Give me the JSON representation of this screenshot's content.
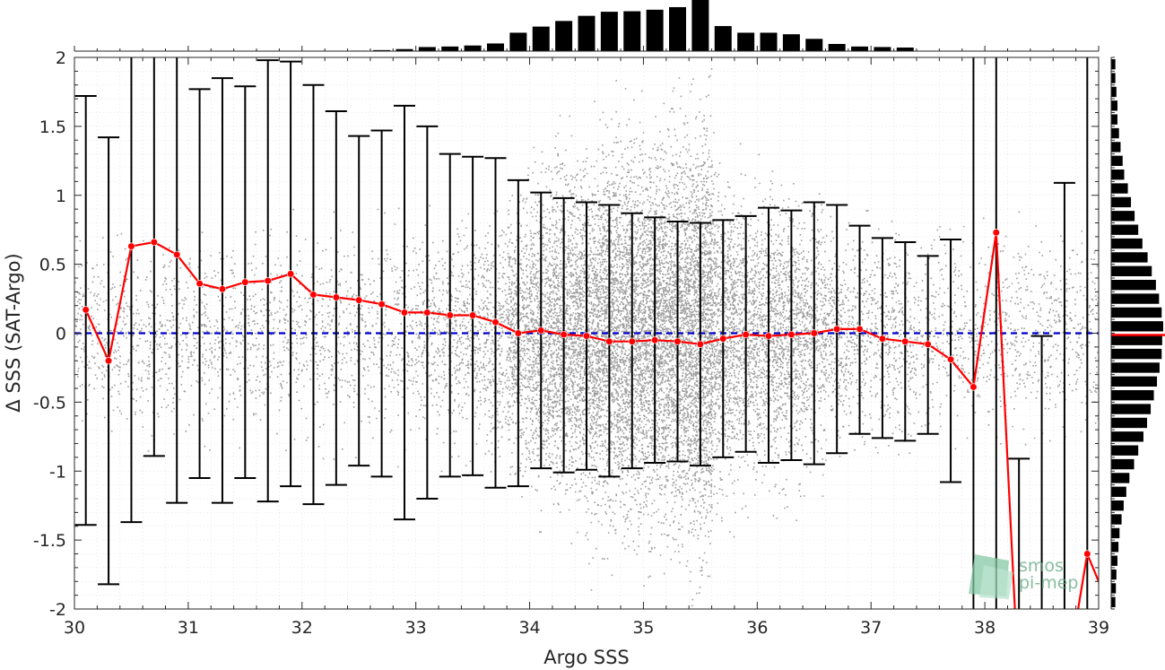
{
  "chart_data": {
    "type": "scatter",
    "xlabel": "Argo SSS",
    "ylabel": "Δ SSS (SAT-Argo)",
    "xlim": [
      30,
      39
    ],
    "ylim": [
      -2,
      2
    ],
    "x_ticks": [
      "30",
      "31",
      "32",
      "33",
      "34",
      "35",
      "36",
      "37",
      "38",
      "39"
    ],
    "y_ticks": [
      "2",
      "1.5",
      "1",
      "0.5",
      "0",
      "-0.5",
      "-1",
      "-1.5",
      "-2"
    ],
    "grid": "minor dotted",
    "zero_line": {
      "y": 0,
      "style": "dashed",
      "color": "#0000cc"
    },
    "scatter_color": "#8c8c8c",
    "series": [
      {
        "type": "line-with-markers",
        "color": "#ff0000",
        "x": [
          30.1,
          30.3,
          30.5,
          30.7,
          30.9,
          31.1,
          31.3,
          31.5,
          31.7,
          31.9,
          32.1,
          32.3,
          32.5,
          32.7,
          32.9,
          33.1,
          33.3,
          33.5,
          33.7,
          33.9,
          34.1,
          34.3,
          34.5,
          34.7,
          34.9,
          35.1,
          35.3,
          35.5,
          35.7,
          35.9,
          36.1,
          36.3,
          36.5,
          36.7,
          36.9,
          37.1,
          37.3,
          37.5,
          37.7,
          37.9,
          38.1,
          38.3,
          38.5,
          38.7,
          38.9,
          39.1
        ],
        "y": [
          0.17,
          -0.2,
          0.63,
          0.66,
          0.57,
          0.36,
          0.32,
          0.37,
          0.38,
          0.43,
          0.28,
          0.26,
          0.24,
          0.21,
          0.15,
          0.15,
          0.13,
          0.13,
          0.08,
          0.0,
          0.02,
          -0.01,
          -0.02,
          -0.06,
          -0.06,
          -0.05,
          -0.06,
          -0.08,
          -0.04,
          -0.01,
          -0.02,
          -0.01,
          0.0,
          0.03,
          0.03,
          -0.04,
          -0.06,
          -0.08,
          -0.19,
          -0.39,
          0.73,
          -2.6,
          null,
          -2.6,
          -1.6,
          -2.0
        ]
      },
      {
        "type": "error-bars",
        "color": "#000000",
        "x": [
          30.1,
          30.3,
          30.5,
          30.7,
          30.9,
          31.1,
          31.3,
          31.5,
          31.7,
          31.9,
          32.1,
          32.3,
          32.5,
          32.7,
          32.9,
          33.1,
          33.3,
          33.5,
          33.7,
          33.9,
          34.1,
          34.3,
          34.5,
          34.7,
          34.9,
          35.1,
          35.3,
          35.5,
          35.7,
          35.9,
          36.1,
          36.3,
          36.5,
          36.7,
          36.9,
          37.1,
          37.3,
          37.5,
          37.7,
          37.9,
          38.1,
          38.3,
          38.5,
          38.7,
          38.9
        ],
        "upper": [
          1.72,
          1.42,
          2.6,
          2.4,
          2.3,
          1.77,
          1.85,
          1.79,
          1.98,
          1.97,
          1.8,
          1.61,
          1.43,
          1.47,
          1.65,
          1.5,
          1.3,
          1.28,
          1.27,
          1.11,
          1.02,
          0.98,
          0.95,
          0.93,
          0.87,
          0.84,
          0.81,
          0.8,
          0.82,
          0.85,
          0.91,
          0.89,
          0.95,
          0.93,
          0.78,
          0.69,
          0.66,
          0.56,
          0.68,
          2.3,
          2.5,
          -0.91,
          -0.02,
          1.09,
          2.3
        ],
        "lower": [
          -1.39,
          -1.82,
          -1.37,
          -0.89,
          -1.23,
          -1.05,
          -1.23,
          -1.05,
          -1.22,
          -1.11,
          -1.24,
          -1.1,
          -0.96,
          -1.04,
          -1.35,
          -1.2,
          -1.04,
          -1.03,
          -1.12,
          -1.11,
          -0.98,
          -1.01,
          -0.99,
          -1.04,
          -0.98,
          -0.94,
          -0.93,
          -0.96,
          -0.9,
          -0.86,
          -0.94,
          -0.92,
          -0.95,
          -0.87,
          -0.73,
          -0.76,
          -0.78,
          -0.73,
          -1.08,
          -2.6,
          -2.6,
          -2.6,
          -2.6,
          -2.6,
          -2.6
        ],
        "caps": [
          [
            true,
            true
          ],
          [
            true,
            true
          ],
          [
            false,
            true
          ],
          [
            false,
            true
          ],
          [
            false,
            true
          ],
          [
            true,
            true
          ],
          [
            true,
            true
          ],
          [
            true,
            true
          ],
          [
            true,
            true
          ],
          [
            true,
            true
          ],
          [
            true,
            true
          ],
          [
            true,
            true
          ],
          [
            true,
            true
          ],
          [
            true,
            true
          ],
          [
            true,
            true
          ],
          [
            true,
            true
          ],
          [
            true,
            true
          ],
          [
            true,
            true
          ],
          [
            true,
            true
          ],
          [
            true,
            true
          ],
          [
            true,
            true
          ],
          [
            true,
            true
          ],
          [
            true,
            true
          ],
          [
            true,
            true
          ],
          [
            true,
            true
          ],
          [
            true,
            true
          ],
          [
            true,
            true
          ],
          [
            true,
            true
          ],
          [
            true,
            true
          ],
          [
            true,
            true
          ],
          [
            true,
            true
          ],
          [
            true,
            true
          ],
          [
            true,
            true
          ],
          [
            true,
            true
          ],
          [
            true,
            true
          ],
          [
            true,
            true
          ],
          [
            true,
            true
          ],
          [
            true,
            true
          ],
          [
            true,
            true
          ],
          [
            false,
            false
          ],
          [
            false,
            false
          ],
          [
            true,
            false
          ],
          [
            true,
            false
          ],
          [
            true,
            false
          ],
          [
            false,
            false
          ]
        ]
      }
    ],
    "top_histogram": {
      "x": [
        30.1,
        30.3,
        30.5,
        30.7,
        30.9,
        31.1,
        31.3,
        31.5,
        31.7,
        31.9,
        32.1,
        32.3,
        32.5,
        32.7,
        32.9,
        33.1,
        33.3,
        33.5,
        33.7,
        33.9,
        34.1,
        34.3,
        34.5,
        34.7,
        34.9,
        35.1,
        35.3,
        35.5,
        35.7,
        35.9,
        36.1,
        36.3,
        36.5,
        36.7,
        36.9,
        37.1,
        37.3,
        37.5,
        37.7,
        37.9,
        38.1,
        38.3,
        38.5,
        38.7,
        38.9
      ],
      "counts": [
        0.0,
        0.0,
        0.0,
        0.0,
        0.0,
        0.0,
        0.0,
        0.0,
        0.0,
        0.0,
        0.0,
        0.0,
        0.01,
        0.02,
        0.04,
        0.08,
        0.09,
        0.11,
        0.15,
        0.36,
        0.48,
        0.59,
        0.69,
        0.77,
        0.78,
        0.81,
        0.86,
        1.0,
        0.49,
        0.36,
        0.36,
        0.33,
        0.24,
        0.14,
        0.09,
        0.08,
        0.07,
        0.0,
        0.0,
        0.0,
        0.0,
        0.0,
        0.0,
        0.0,
        0.0
      ],
      "color": "#000000"
    },
    "right_histogram": {
      "y": [
        1.95,
        1.85,
        1.75,
        1.65,
        1.55,
        1.45,
        1.35,
        1.25,
        1.15,
        1.05,
        0.95,
        0.85,
        0.75,
        0.65,
        0.55,
        0.45,
        0.35,
        0.25,
        0.15,
        0.05,
        -0.05,
        -0.15,
        -0.25,
        -0.35,
        -0.45,
        -0.55,
        -0.65,
        -0.75,
        -0.85,
        -0.95,
        -1.05,
        -1.15,
        -1.25,
        -1.35,
        -1.45,
        -1.55,
        -1.65,
        -1.75,
        -1.85,
        -1.95
      ],
      "counts": [
        0.08,
        0.08,
        0.1,
        0.12,
        0.12,
        0.15,
        0.18,
        0.22,
        0.25,
        0.32,
        0.38,
        0.45,
        0.52,
        0.6,
        0.7,
        0.78,
        0.86,
        0.92,
        0.97,
        1.0,
        0.98,
        0.97,
        0.93,
        0.88,
        0.82,
        0.76,
        0.69,
        0.62,
        0.52,
        0.44,
        0.35,
        0.29,
        0.24,
        0.2,
        0.16,
        0.14,
        0.12,
        0.1,
        0.09,
        0.08
      ],
      "color": "#000000",
      "mean_marker_color": "#ff0000"
    }
  },
  "logo": {
    "line1": "smos",
    "line2": "pi-mep",
    "color": "#5fa882"
  }
}
